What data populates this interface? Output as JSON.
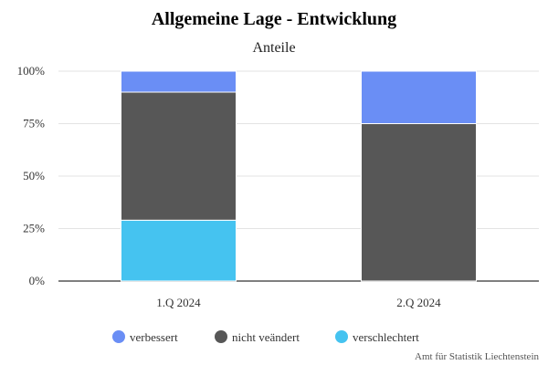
{
  "chart_data": {
    "type": "bar",
    "stacked": true,
    "title": "Allgemeine Lage - Entwicklung",
    "subtitle": "Anteile",
    "categories": [
      "1.Q 2024",
      "2.Q 2024"
    ],
    "series": [
      {
        "name": "verschlechtert",
        "color": "#45C3F0",
        "values": [
          29,
          0
        ]
      },
      {
        "name": "nicht veändert",
        "color": "#575757",
        "values": [
          61,
          75
        ]
      },
      {
        "name": "verbessert",
        "color": "#6A8EF5",
        "values": [
          10,
          25
        ]
      }
    ],
    "ylim": [
      0,
      100
    ],
    "yticks": [
      0,
      25,
      50,
      75,
      100
    ],
    "ytick_suffix": "%",
    "grid": true,
    "legend_position": "bottom",
    "legend_order": [
      "verbessert",
      "nicht veändert",
      "verschlechtert"
    ]
  },
  "credit": "Amt für Statistik Liechtenstein"
}
